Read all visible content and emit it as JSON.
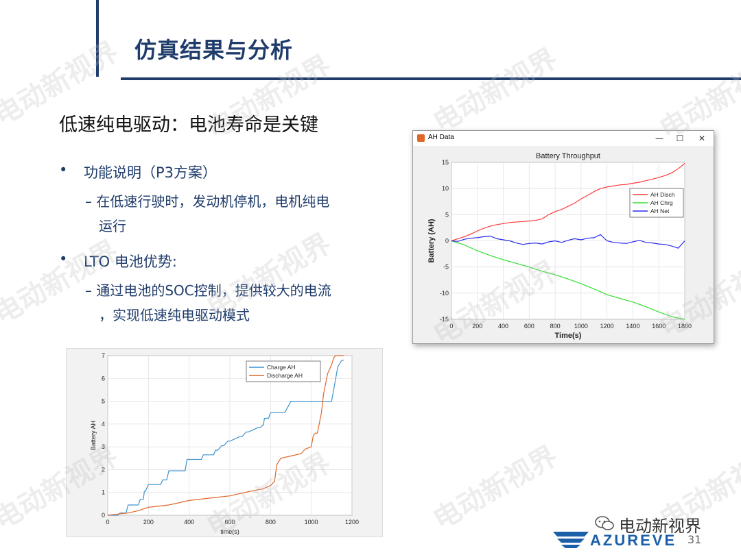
{
  "slide": {
    "title": "仿真结果与分析",
    "subtitle": "低速纯电驱动：电池寿命是关键",
    "bullets": [
      {
        "text": "功能说明（P3方案）",
        "subs": [
          {
            "lines": [
              "– 在低速行驶时，发动机停机，电机纯电",
              "运行"
            ]
          }
        ]
      },
      {
        "text": "LTO 电池优势:",
        "subs": [
          {
            "lines": [
              "– 通过电池的SOC控制，提供较大的电流",
              "，实现低速纯电驱动模式"
            ]
          }
        ]
      }
    ],
    "watermark": "电动新视界",
    "brand": "电动新视界",
    "logo_text": "AZUREVE",
    "page_number": "31",
    "colors": {
      "accent": "#1f3c6b",
      "logo": "#1a5fa8"
    }
  },
  "window": {
    "title": "AH Data",
    "controls": [
      "—",
      "☐",
      "✕"
    ]
  },
  "chart_data": [
    {
      "type": "line",
      "title": "Battery Throughput",
      "xlabel": "Time(s)",
      "ylabel": "Battery (AH)",
      "xlim": [
        0,
        1800
      ],
      "ylim": [
        -15,
        15
      ],
      "xticks": [
        0,
        200,
        400,
        600,
        800,
        1000,
        1200,
        1400,
        1600,
        1800
      ],
      "yticks": [
        15,
        10,
        5,
        0,
        -5,
        -10,
        -15
      ],
      "legend_position": "top-right",
      "series": [
        {
          "name": "AH Disch",
          "color": "#ff3b3b",
          "x": [
            0,
            50,
            100,
            150,
            200,
            250,
            300,
            350,
            400,
            450,
            500,
            550,
            600,
            650,
            700,
            750,
            800,
            850,
            900,
            950,
            1000,
            1050,
            1100,
            1150,
            1200,
            1250,
            1300,
            1350,
            1400,
            1450,
            1500,
            1550,
            1600,
            1650,
            1700,
            1750,
            1800
          ],
          "y": [
            0,
            0.4,
            0.8,
            1.3,
            1.9,
            2.4,
            2.8,
            3.1,
            3.3,
            3.5,
            3.6,
            3.7,
            3.8,
            3.9,
            4.2,
            5.0,
            5.6,
            6.0,
            6.6,
            7.2,
            8.0,
            8.7,
            9.4,
            10.0,
            10.3,
            10.5,
            10.7,
            10.8,
            11.0,
            11.2,
            11.5,
            11.8,
            12.1,
            12.5,
            13.0,
            13.8,
            14.8
          ]
        },
        {
          "name": "AH Chrg",
          "color": "#33dd33",
          "x": [
            0,
            100,
            200,
            300,
            400,
            500,
            600,
            700,
            800,
            900,
            1000,
            1100,
            1200,
            1300,
            1400,
            1500,
            1600,
            1700,
            1800
          ],
          "y": [
            0,
            -0.8,
            -1.9,
            -2.8,
            -3.6,
            -4.3,
            -5.0,
            -5.8,
            -6.5,
            -7.3,
            -8.2,
            -9.2,
            -10.3,
            -11.0,
            -11.7,
            -12.6,
            -13.6,
            -14.5,
            -15.0
          ]
        },
        {
          "name": "AH Net",
          "color": "#2a2aee",
          "x": [
            0,
            50,
            100,
            150,
            200,
            250,
            300,
            350,
            400,
            450,
            500,
            550,
            600,
            650,
            700,
            750,
            800,
            850,
            900,
            950,
            1000,
            1050,
            1100,
            1150,
            1200,
            1250,
            1300,
            1350,
            1400,
            1450,
            1500,
            1550,
            1600,
            1650,
            1700,
            1750,
            1800
          ],
          "y": [
            0,
            -0.1,
            0.3,
            0.5,
            0.6,
            0.8,
            0.9,
            0.4,
            0.2,
            0.0,
            -0.4,
            -0.7,
            -0.5,
            -0.4,
            -0.6,
            -0.2,
            0.0,
            -0.3,
            0.1,
            0.4,
            0.2,
            0.5,
            0.6,
            1.2,
            0.0,
            -0.3,
            -0.4,
            -0.5,
            -0.2,
            0.1,
            -0.3,
            -0.4,
            -0.6,
            -0.7,
            -1.0,
            -1.4,
            0.0
          ]
        }
      ]
    },
    {
      "type": "line",
      "title": "",
      "xlabel": "time(s)",
      "ylabel": "Battery AH",
      "xlim": [
        0,
        1200
      ],
      "ylim": [
        0,
        7
      ],
      "xticks": [
        0,
        200,
        400,
        600,
        800,
        1000,
        1200
      ],
      "yticks": [
        0,
        1,
        2,
        3,
        4,
        5,
        6,
        7
      ],
      "legend_position": "top-right",
      "series": [
        {
          "name": "Charge AH",
          "color": "#3f92cf",
          "x": [
            0,
            50,
            60,
            90,
            100,
            150,
            160,
            175,
            180,
            185,
            200,
            260,
            270,
            290,
            300,
            380,
            390,
            410,
            420,
            460,
            470,
            520,
            530,
            540,
            560,
            570,
            590,
            600,
            650,
            660,
            680,
            690,
            740,
            750,
            760,
            765,
            770,
            790,
            800,
            850,
            870,
            900,
            1000,
            1100,
            1120,
            1130,
            1150,
            1160
          ],
          "y": [
            0,
            0,
            0.1,
            0.1,
            0.45,
            0.45,
            0.7,
            0.7,
            1.05,
            1.05,
            1.35,
            1.35,
            1.55,
            1.55,
            1.95,
            1.95,
            2.45,
            2.45,
            2.45,
            2.45,
            2.65,
            2.65,
            2.85,
            2.85,
            3.05,
            3.05,
            3.25,
            3.25,
            3.45,
            3.45,
            3.65,
            3.65,
            3.85,
            3.85,
            3.95,
            3.95,
            4.25,
            4.25,
            4.5,
            4.5,
            4.5,
            5.0,
            5.0,
            5.0,
            6.0,
            6.5,
            6.8,
            6.8
          ]
        },
        {
          "name": "Discharge AH",
          "color": "#e0662a",
          "x": [
            0,
            50,
            100,
            150,
            200,
            300,
            400,
            500,
            550,
            600,
            700,
            760,
            800,
            820,
            830,
            850,
            900,
            950,
            970,
            1000,
            1010,
            1020,
            1030,
            1050,
            1060,
            1080,
            1100,
            1110,
            1120,
            1140,
            1160
          ],
          "y": [
            0,
            0.05,
            0.1,
            0.2,
            0.35,
            0.45,
            0.65,
            0.75,
            0.8,
            0.85,
            1.05,
            1.15,
            1.3,
            1.5,
            2.2,
            2.5,
            2.6,
            2.7,
            2.9,
            3.0,
            3.5,
            3.6,
            3.6,
            4.5,
            5.3,
            6.2,
            6.6,
            6.9,
            7.0,
            7.0,
            7.0
          ]
        }
      ]
    }
  ]
}
